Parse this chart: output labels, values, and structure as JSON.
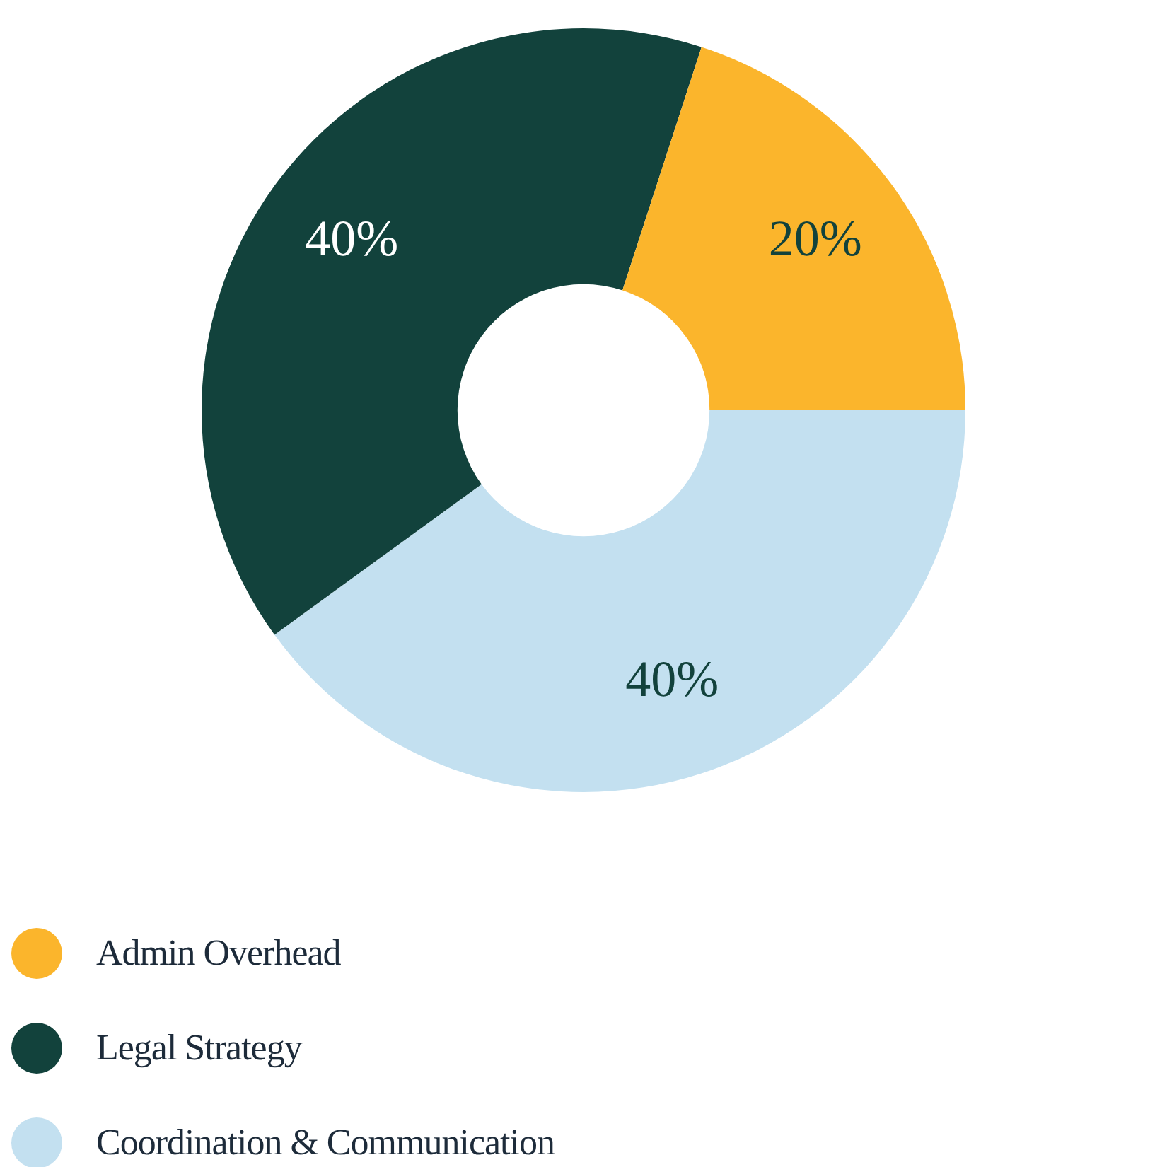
{
  "chart_data": {
    "type": "donut",
    "categories": [
      "Admin Overhead",
      "Legal Strategy",
      "Coordination & Communication"
    ],
    "values": [
      20,
      40,
      40
    ],
    "colors": [
      "#fbb52c",
      "#12423c",
      "#c3e0f0"
    ],
    "value_labels": [
      "20%",
      "40%",
      "40%"
    ],
    "legend": "bottom left"
  }
}
